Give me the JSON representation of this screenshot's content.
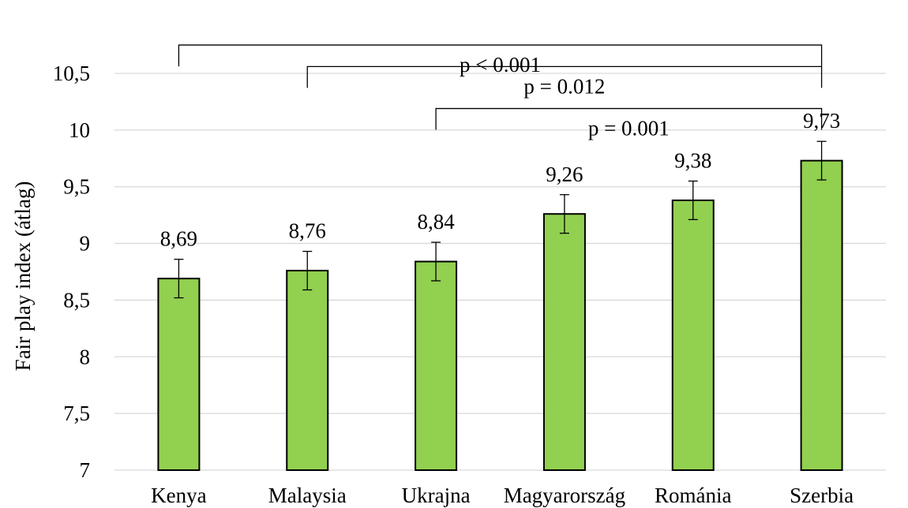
{
  "chart_data": {
    "type": "bar",
    "ylabel": "Fair play index (átlag)",
    "xlabel": "",
    "title": "",
    "ylim": [
      7,
      10.5
    ],
    "yticks": [
      7,
      7.5,
      8,
      8.5,
      9,
      9.5,
      10,
      10.5
    ],
    "ytick_labels": [
      "7",
      "7,5",
      "8",
      "8,5",
      "9",
      "9,5",
      "10",
      "10,5"
    ],
    "categories": [
      "Kenya",
      "Malaysia",
      "Ukrajna",
      "Magyarország",
      "Románia",
      "Szerbia"
    ],
    "values": [
      8.69,
      8.76,
      8.84,
      9.26,
      9.38,
      9.73
    ],
    "value_labels": [
      "8,69",
      "8,76",
      "8,84",
      "9,26",
      "9,38",
      "9,73"
    ],
    "error": [
      0.17,
      0.17,
      0.17,
      0.17,
      0.17,
      0.17
    ],
    "grid": true,
    "colors": {
      "bar": "#92d050",
      "bar_edge": "#000000",
      "grid": "#d9d9d9"
    },
    "comparisons": [
      {
        "from": "Kenya",
        "to": "Szerbia",
        "label": "p < 0.001",
        "top": 10.75
      },
      {
        "from": "Malaysia",
        "to": "Szerbia",
        "label": "p = 0.012",
        "top": 10.56
      },
      {
        "from": "Ukrajna",
        "to": "Szerbia",
        "label": "p = 0.001",
        "top": 10.19
      }
    ]
  }
}
